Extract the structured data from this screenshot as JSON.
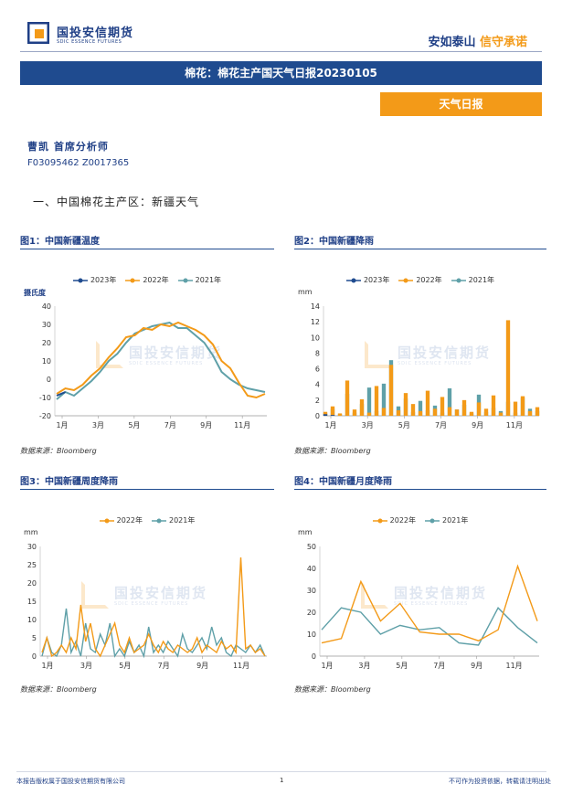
{
  "header": {
    "logo_cn": "国投安信期货",
    "logo_en": "SDIC ESSENCE FUTURES",
    "slogan_a": "安如泰山",
    "slogan_b": "信守承诺",
    "title": "棉花：棉花主产国天气日报20230105",
    "tag": "天气日报"
  },
  "analyst": {
    "name": "曹凯 首席分析师",
    "ids": "F03095462 Z0017365"
  },
  "section": "一、中国棉花主产区：新疆天气",
  "source": "数据来源：Bloomberg",
  "watermark": {
    "cn": "国投安信期货",
    "en": "SDIC ESSENCE FUTURES"
  },
  "footer": {
    "left": "本报告版权属于国投安信期货有限公司",
    "page": "1",
    "right": "不可作为投资依据，转载请注明出处"
  },
  "colors": {
    "y2023": "#1f4b8f",
    "y2022": "#f39a18",
    "y2021": "#5fa0a8"
  },
  "charts": [
    {
      "id": "temp",
      "fig_title": "图1：中国新疆温度",
      "unit": "摄氏度",
      "legend": [
        "2023年",
        "2022年",
        "2021年"
      ],
      "chart_data": {
        "type": "line",
        "title": "中国新疆温度",
        "ylabel": "摄氏度",
        "ylim": [
          -20,
          40
        ],
        "yticks": [
          -20,
          -10,
          0,
          10,
          20,
          30,
          40
        ],
        "xticks": [
          "1月",
          "3月",
          "5月",
          "7月",
          "9月",
          "11月"
        ],
        "series": [
          {
            "name": "2023年",
            "values": [
              -9,
              -7
            ]
          },
          {
            "name": "2022年",
            "values": [
              -8,
              -5,
              -6,
              -3,
              2,
              6,
              12,
              17,
              23,
              24,
              28,
              27,
              30,
              29,
              31,
              29,
              27,
              24,
              19,
              10,
              6,
              -2,
              -9,
              -10,
              -8
            ]
          },
          {
            "name": "2021年",
            "values": [
              -11,
              -7,
              -9,
              -5,
              -1,
              4,
              10,
              14,
              20,
              25,
              27,
              29,
              30,
              31,
              28,
              28,
              24,
              20,
              13,
              4,
              0,
              -3,
              -5,
              -6,
              -7
            ]
          }
        ]
      }
    },
    {
      "id": "rain",
      "fig_title": "图2：中国新疆降雨",
      "unit": "mm",
      "legend": [
        "2023年",
        "2022年",
        "2021年"
      ],
      "chart_data": {
        "type": "bar",
        "title": "中国新疆降雨",
        "ylabel": "mm",
        "ylim": [
          0,
          14
        ],
        "yticks": [
          0,
          2,
          4,
          6,
          8,
          10,
          12,
          14
        ],
        "xticks": [
          "1月",
          "3月",
          "5月",
          "7月",
          "9月",
          "11月"
        ],
        "series": [
          {
            "name": "2023年",
            "values": [
              0.2,
              0.1
            ]
          },
          {
            "name": "2022年",
            "values": [
              0.5,
              1.2,
              0.3,
              4.5,
              0.8,
              2.1,
              0.4,
              3.8,
              1.0,
              6.5,
              0.7,
              2.9,
              1.5,
              0.6,
              3.2,
              0.9,
              2.4,
              1.1,
              0.8,
              2.0,
              0.5,
              1.7,
              0.9,
              2.6,
              0.4,
              12.2,
              1.8,
              2.5,
              0.6,
              1.1
            ]
          },
          {
            "name": "2021年",
            "values": [
              0.3,
              0.9,
              0.2,
              2.8,
              0.4,
              1.5,
              3.6,
              0.6,
              4.1,
              7.1,
              1.2,
              2.2,
              0.5,
              1.9,
              0.7,
              1.3,
              0.4,
              3.5,
              0.8,
              1.4,
              0.3,
              2.7,
              0.5,
              1.0,
              0.6,
              1.8,
              0.4,
              2.3,
              0.9,
              0.6
            ]
          }
        ]
      }
    },
    {
      "id": "week",
      "fig_title": "图3：中国新疆周度降雨",
      "unit": "mm",
      "legend": [
        "2022年",
        "2021年"
      ],
      "chart_data": {
        "type": "line",
        "title": "中国新疆周度降雨",
        "ylabel": "mm",
        "ylim": [
          0,
          30
        ],
        "yticks": [
          0,
          5,
          10,
          15,
          20,
          25,
          30
        ],
        "xticks": [
          "1月",
          "3月",
          "5月",
          "7月",
          "9月",
          "11月"
        ],
        "series": [
          {
            "name": "2022年",
            "values": [
              1,
              5,
              0,
              1,
              3,
              1,
              5,
              2,
              14,
              4,
              9,
              2,
              0,
              3,
              6,
              9,
              3,
              1,
              5,
              1,
              2,
              3,
              6,
              3,
              1,
              4,
              2,
              1,
              3,
              2,
              1,
              2,
              5,
              1,
              3,
              2,
              1,
              4,
              2,
              3,
              1,
              27,
              2,
              3,
              1,
              2,
              0
            ]
          },
          {
            "name": "2021年",
            "values": [
              0,
              5,
              1,
              0,
              3,
              13,
              1,
              4,
              0,
              9,
              2,
              1,
              6,
              3,
              9,
              0,
              2,
              0,
              4,
              1,
              3,
              0,
              8,
              1,
              3,
              1,
              4,
              2,
              0,
              6,
              2,
              1,
              3,
              5,
              2,
              8,
              3,
              5,
              1,
              0,
              3,
              2,
              1,
              3,
              1,
              3,
              0
            ]
          }
        ]
      }
    },
    {
      "id": "month",
      "fig_title": "图4：中国新疆月度降雨",
      "unit": "mm",
      "legend": [
        "2022年",
        "2021年"
      ],
      "chart_data": {
        "type": "line",
        "title": "中国新疆月度降雨",
        "ylabel": "mm",
        "ylim": [
          0,
          50
        ],
        "yticks": [
          0,
          10,
          20,
          30,
          40,
          50
        ],
        "xticks": [
          "1月",
          "3月",
          "5月",
          "7月",
          "9月",
          "11月"
        ],
        "series": [
          {
            "name": "2022年",
            "values": [
              6,
              8,
              34,
              16,
              24,
              11,
              10,
              10,
              7,
              12,
              41,
              16
            ]
          },
          {
            "name": "2021年",
            "values": [
              12,
              22,
              20,
              10,
              14,
              12,
              13,
              6,
              5,
              22,
              13,
              6
            ]
          }
        ]
      }
    }
  ]
}
